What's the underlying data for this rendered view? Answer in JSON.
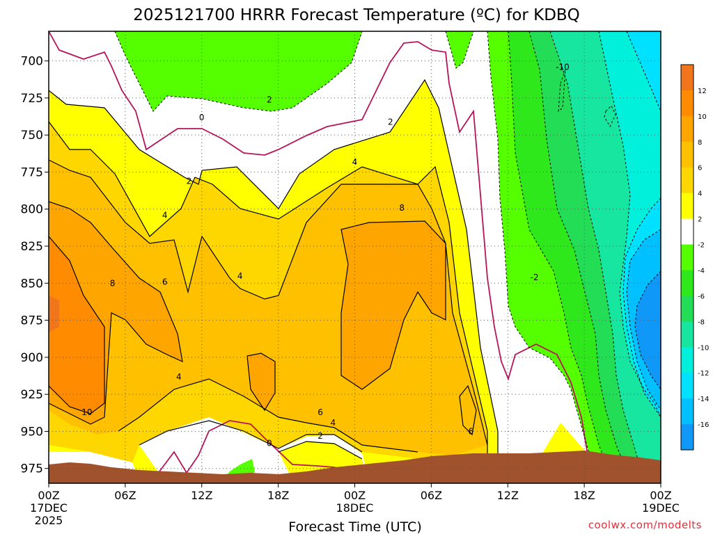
{
  "chart_data": {
    "type": "heatmap",
    "title": "2025121700 HRRR Forecast Temperature (ºC) for KDBQ",
    "xlabel": "Forecast Time (UTC)",
    "ylabel": "",
    "credit": "coolwx.com/modelts",
    "x_ticks": [
      {
        "hour": 0,
        "label": "00Z",
        "date": "17DEC",
        "year": "2025"
      },
      {
        "hour": 6,
        "label": "06Z",
        "date": "",
        "year": ""
      },
      {
        "hour": 12,
        "label": "12Z",
        "date": "",
        "year": ""
      },
      {
        "hour": 18,
        "label": "18Z",
        "date": "",
        "year": ""
      },
      {
        "hour": 24,
        "label": "00Z",
        "date": "18DEC",
        "year": ""
      },
      {
        "hour": 30,
        "label": "06Z",
        "date": "",
        "year": ""
      },
      {
        "hour": 36,
        "label": "12Z",
        "date": "",
        "year": ""
      },
      {
        "hour": 42,
        "label": "18Z",
        "date": "",
        "year": ""
      },
      {
        "hour": 48,
        "label": "00Z",
        "date": "19DEC",
        "year": ""
      }
    ],
    "xlim": [
      0,
      48
    ],
    "y_ticks": [
      700,
      725,
      750,
      775,
      800,
      825,
      850,
      875,
      900,
      925,
      950,
      975
    ],
    "ylim": [
      680,
      985
    ],
    "colorbar": {
      "ticks": [
        "12",
        "10",
        "8",
        "6",
        "4",
        "2",
        "-2",
        "-4",
        "-6",
        "-8",
        "-10",
        "-12",
        "-14",
        "-16"
      ],
      "colors": [
        "#f0751b",
        "#ff8c00",
        "#ffa500",
        "#ffc000",
        "#ffd700",
        "#ffff00",
        "#ffffff",
        "#55ff00",
        "#2ee81c",
        "#22dd55",
        "#17e6a0",
        "#00f0dc",
        "#00e1ff",
        "#00c0ff",
        "#1098f8"
      ]
    },
    "contour_labels": [
      {
        "text": "-10",
        "hour": 40.3,
        "p": 706
      },
      {
        "text": "2",
        "hour": 17.3,
        "p": 728
      },
      {
        "text": "0",
        "hour": 12,
        "p": 740
      },
      {
        "text": "2",
        "hour": 26.8,
        "p": 743
      },
      {
        "text": "4",
        "hour": 24,
        "p": 770
      },
      {
        "text": "2",
        "hour": 11,
        "p": 783
      },
      {
        "text": "8",
        "hour": 27.7,
        "p": 801
      },
      {
        "text": "4",
        "hour": 9.1,
        "p": 806
      },
      {
        "text": "4",
        "hour": 15,
        "p": 847
      },
      {
        "text": "6",
        "hour": 9.1,
        "p": 851
      },
      {
        "text": "8",
        "hour": 5,
        "p": 852
      },
      {
        "text": "-2",
        "hour": 38.1,
        "p": 848
      },
      {
        "text": "4",
        "hour": 10.2,
        "p": 915
      },
      {
        "text": "10",
        "hour": 3,
        "p": 939
      },
      {
        "text": "6",
        "hour": 21.3,
        "p": 939
      },
      {
        "text": "4",
        "hour": 22.3,
        "p": 946
      },
      {
        "text": "6",
        "hour": 33.1,
        "p": 952
      },
      {
        "text": "2",
        "hour": 21.3,
        "p": 955
      },
      {
        "text": "0",
        "hour": 17.3,
        "p": 960
      }
    ]
  }
}
